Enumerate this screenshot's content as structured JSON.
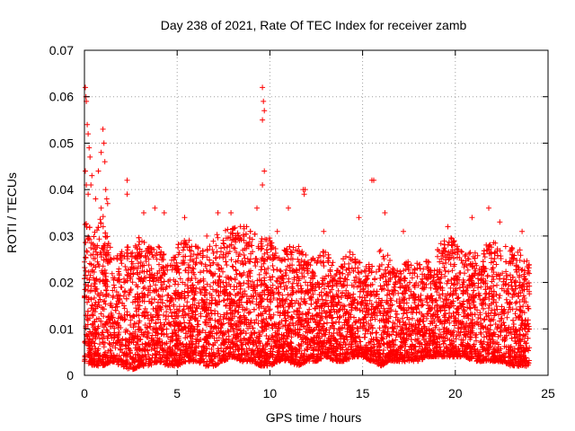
{
  "chart_data": {
    "type": "scatter",
    "title": "Day 238 of 2021, Rate Of TEC Index for receiver zamb",
    "xlabel": "GPS time / hours",
    "ylabel": "ROTI / TECUs",
    "xlim": [
      0,
      25
    ],
    "ylim": [
      0,
      0.07
    ],
    "xticks": [
      "0",
      "5",
      "10",
      "15",
      "20",
      "25"
    ],
    "yticks": [
      "0",
      "0.01",
      "0.02",
      "0.03",
      "0.04",
      "0.05",
      "0.06",
      "0.07"
    ],
    "grid": true,
    "marker": "plus",
    "color": "#ff0000",
    "series": [
      {
        "name": "ROTI",
        "outliers": [
          [
            0.05,
            0.062
          ],
          [
            0.08,
            0.06
          ],
          [
            0.1,
            0.059
          ],
          [
            0.15,
            0.054
          ],
          [
            0.2,
            0.052
          ],
          [
            0.25,
            0.049
          ],
          [
            0.3,
            0.047
          ],
          [
            0.05,
            0.044
          ],
          [
            0.1,
            0.041
          ],
          [
            0.2,
            0.039
          ],
          [
            0.35,
            0.041
          ],
          [
            0.4,
            0.043
          ],
          [
            0.6,
            0.038
          ],
          [
            0.75,
            0.044
          ],
          [
            0.9,
            0.048
          ],
          [
            1.0,
            0.053
          ],
          [
            1.05,
            0.05
          ],
          [
            1.1,
            0.046
          ],
          [
            1.15,
            0.04
          ],
          [
            1.2,
            0.038
          ],
          [
            1.25,
            0.037
          ],
          [
            0.9,
            0.036
          ],
          [
            2.3,
            0.042
          ],
          [
            2.3,
            0.039
          ],
          [
            3.2,
            0.035
          ],
          [
            3.8,
            0.036
          ],
          [
            5.4,
            0.034
          ],
          [
            7.2,
            0.035
          ],
          [
            7.9,
            0.035
          ],
          [
            9.6,
            0.062
          ],
          [
            9.65,
            0.059
          ],
          [
            9.7,
            0.057
          ],
          [
            9.6,
            0.055
          ],
          [
            9.7,
            0.044
          ],
          [
            9.6,
            0.041
          ],
          [
            9.3,
            0.036
          ],
          [
            11.8,
            0.04
          ],
          [
            11.9,
            0.04
          ],
          [
            11.85,
            0.039
          ],
          [
            11.0,
            0.036
          ],
          [
            15.5,
            0.042
          ],
          [
            15.6,
            0.042
          ],
          [
            14.8,
            0.034
          ],
          [
            16.2,
            0.035
          ],
          [
            19.6,
            0.032
          ],
          [
            20.9,
            0.034
          ],
          [
            21.8,
            0.036
          ],
          [
            22.4,
            0.033
          ],
          [
            23.6,
            0.031
          ],
          [
            4.3,
            0.035
          ],
          [
            6.6,
            0.03
          ],
          [
            8.6,
            0.032
          ],
          [
            10.4,
            0.031
          ],
          [
            12.9,
            0.031
          ],
          [
            17.2,
            0.031
          ]
        ],
        "envelope_hours": [
          0,
          0.5,
          1,
          1.5,
          2,
          2.5,
          3,
          3.5,
          4,
          4.5,
          5,
          5.5,
          6,
          6.5,
          7,
          7.5,
          8,
          8.5,
          9,
          9.5,
          10,
          10.5,
          11,
          11.5,
          12,
          12.5,
          13,
          13.5,
          14,
          14.5,
          15,
          15.5,
          16,
          16.5,
          17,
          17.5,
          18,
          18.5,
          19,
          19.5,
          20,
          20.5,
          21,
          21.5,
          22,
          22.5,
          23,
          23.5,
          24
        ],
        "envelope_upper": [
          0.034,
          0.031,
          0.036,
          0.026,
          0.027,
          0.029,
          0.03,
          0.028,
          0.029,
          0.024,
          0.028,
          0.03,
          0.028,
          0.027,
          0.03,
          0.031,
          0.032,
          0.033,
          0.031,
          0.03,
          0.03,
          0.027,
          0.028,
          0.028,
          0.026,
          0.026,
          0.027,
          0.025,
          0.026,
          0.027,
          0.026,
          0.024,
          0.028,
          0.025,
          0.024,
          0.025,
          0.024,
          0.025,
          0.027,
          0.031,
          0.029,
          0.026,
          0.027,
          0.028,
          0.029,
          0.028,
          0.028,
          0.027,
          0.024
        ],
        "envelope_lower": [
          0.003,
          0.002,
          0.002,
          0.003,
          0.002,
          0.001,
          0.002,
          0.002,
          0.003,
          0.002,
          0.002,
          0.003,
          0.003,
          0.002,
          0.002,
          0.003,
          0.004,
          0.003,
          0.003,
          0.002,
          0.002,
          0.003,
          0.003,
          0.002,
          0.003,
          0.003,
          0.004,
          0.003,
          0.003,
          0.004,
          0.004,
          0.003,
          0.002,
          0.003,
          0.003,
          0.003,
          0.003,
          0.004,
          0.004,
          0.004,
          0.004,
          0.004,
          0.003,
          0.003,
          0.003,
          0.003,
          0.002,
          0.002,
          0.002
        ]
      }
    ]
  }
}
